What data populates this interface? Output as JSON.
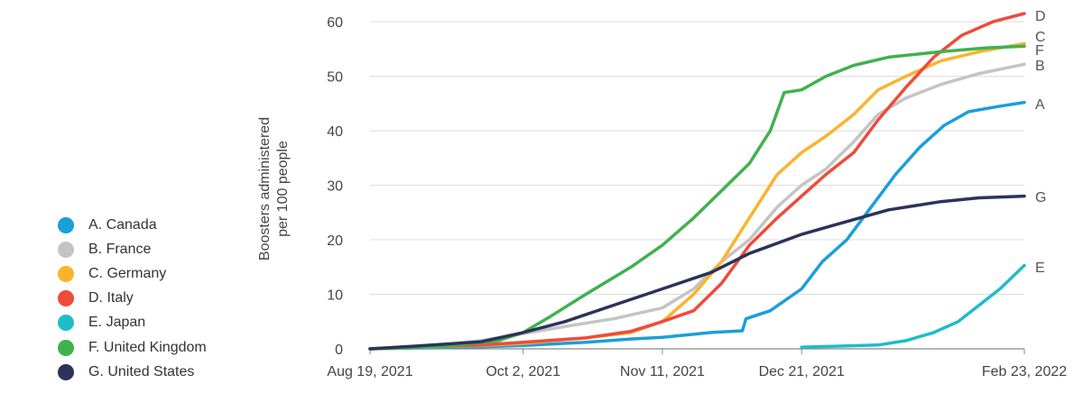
{
  "chart_data": {
    "type": "line",
    "ylabel": "Boosters administered\nper 100 people",
    "xlabel": "",
    "ylim": [
      0,
      62
    ],
    "yticks": [
      0,
      10,
      20,
      30,
      40,
      50,
      60
    ],
    "xlim": [
      "2021-08-19",
      "2022-02-23"
    ],
    "xticks": [
      "2021-08-19",
      "2021-10-02",
      "2021-11-11",
      "2021-12-21",
      "2022-02-23"
    ],
    "xtick_labels": [
      "Aug 19, 2021",
      "Oct 2, 2021",
      "Nov 11, 2021",
      "Dec 21, 2021",
      "Feb 23, 2022"
    ],
    "grid": true,
    "legend_position": "left",
    "series": [
      {
        "name": "A. Canada",
        "end_label": "A",
        "color": "#1a9fd9",
        "points": [
          [
            "2021-08-19",
            0
          ],
          [
            "2021-09-15",
            0.3
          ],
          [
            "2021-10-02",
            0.6
          ],
          [
            "2021-10-20",
            1.2
          ],
          [
            "2021-11-02",
            1.8
          ],
          [
            "2021-11-11",
            2.1
          ],
          [
            "2021-11-25",
            3
          ],
          [
            "2021-12-04",
            3.3
          ],
          [
            "2021-12-05",
            5.5
          ],
          [
            "2021-12-12",
            7
          ],
          [
            "2021-12-21",
            11
          ],
          [
            "2021-12-27",
            16
          ],
          [
            "2022-01-03",
            20
          ],
          [
            "2022-01-10",
            26
          ],
          [
            "2022-01-17",
            32
          ],
          [
            "2022-01-24",
            37
          ],
          [
            "2022-01-31",
            41
          ],
          [
            "2022-02-07",
            43.5
          ],
          [
            "2022-02-16",
            44.5
          ],
          [
            "2022-02-23",
            45.2
          ]
        ]
      },
      {
        "name": "B. France",
        "end_label": "B",
        "color": "#c4c4c4",
        "points": [
          [
            "2021-08-19",
            0
          ],
          [
            "2021-09-10",
            0.8
          ],
          [
            "2021-09-20",
            1.5
          ],
          [
            "2021-10-02",
            2.8
          ],
          [
            "2021-10-15",
            4.2
          ],
          [
            "2021-10-28",
            5.5
          ],
          [
            "2021-11-11",
            7.5
          ],
          [
            "2021-11-20",
            11
          ],
          [
            "2021-11-28",
            16
          ],
          [
            "2021-12-06",
            20
          ],
          [
            "2021-12-14",
            26
          ],
          [
            "2021-12-21",
            30
          ],
          [
            "2021-12-28",
            33
          ],
          [
            "2022-01-05",
            38
          ],
          [
            "2022-01-12",
            43
          ],
          [
            "2022-01-20",
            46
          ],
          [
            "2022-01-30",
            48.5
          ],
          [
            "2022-02-10",
            50.5
          ],
          [
            "2022-02-23",
            52.2
          ]
        ]
      },
      {
        "name": "C. Germany",
        "end_label": "C",
        "color": "#fbb32e",
        "points": [
          [
            "2021-08-19",
            0
          ],
          [
            "2021-09-20",
            0.6
          ],
          [
            "2021-10-02",
            1
          ],
          [
            "2021-10-20",
            2
          ],
          [
            "2021-11-02",
            3
          ],
          [
            "2021-11-11",
            5
          ],
          [
            "2021-11-20",
            10
          ],
          [
            "2021-11-28",
            16
          ],
          [
            "2021-12-06",
            24
          ],
          [
            "2021-12-14",
            32
          ],
          [
            "2021-12-21",
            36
          ],
          [
            "2021-12-28",
            39
          ],
          [
            "2022-01-05",
            43
          ],
          [
            "2022-01-12",
            47.5
          ],
          [
            "2022-01-20",
            50
          ],
          [
            "2022-01-30",
            52.8
          ],
          [
            "2022-02-10",
            54.5
          ],
          [
            "2022-02-23",
            56
          ]
        ]
      },
      {
        "name": "D. Italy",
        "end_label": "D",
        "color": "#ef4b3c",
        "points": [
          [
            "2021-08-19",
            0
          ],
          [
            "2021-09-20",
            0.7
          ],
          [
            "2021-10-02",
            1.2
          ],
          [
            "2021-10-20",
            2
          ],
          [
            "2021-11-02",
            3.2
          ],
          [
            "2021-11-11",
            5
          ],
          [
            "2021-11-20",
            7
          ],
          [
            "2021-11-28",
            12
          ],
          [
            "2021-12-06",
            19
          ],
          [
            "2021-12-14",
            24
          ],
          [
            "2021-12-21",
            28
          ],
          [
            "2021-12-28",
            32
          ],
          [
            "2022-01-05",
            36
          ],
          [
            "2022-01-12",
            42
          ],
          [
            "2022-01-20",
            48
          ],
          [
            "2022-01-28",
            53.5
          ],
          [
            "2022-02-05",
            57.5
          ],
          [
            "2022-02-14",
            60
          ],
          [
            "2022-02-23",
            61.5
          ]
        ]
      },
      {
        "name": "E. Japan",
        "end_label": "E",
        "color": "#1fbcc8",
        "points": [
          [
            "2021-12-21",
            0.3
          ],
          [
            "2022-01-01",
            0.5
          ],
          [
            "2022-01-12",
            0.7
          ],
          [
            "2022-01-20",
            1.5
          ],
          [
            "2022-01-28",
            3
          ],
          [
            "2022-02-04",
            5
          ],
          [
            "2022-02-10",
            8
          ],
          [
            "2022-02-16",
            11
          ],
          [
            "2022-02-23",
            15.3
          ]
        ]
      },
      {
        "name": "F. United Kingdom",
        "end_label": "F",
        "color": "#3fb24e",
        "points": [
          [
            "2021-08-19",
            0
          ],
          [
            "2021-09-10",
            0.5
          ],
          [
            "2021-09-25",
            1.5
          ],
          [
            "2021-10-02",
            3
          ],
          [
            "2021-10-10",
            6
          ],
          [
            "2021-10-20",
            10
          ],
          [
            "2021-11-02",
            15
          ],
          [
            "2021-11-11",
            19
          ],
          [
            "2021-11-20",
            24
          ],
          [
            "2021-11-28",
            29
          ],
          [
            "2021-12-06",
            34
          ],
          [
            "2021-12-12",
            40
          ],
          [
            "2021-12-16",
            47
          ],
          [
            "2021-12-21",
            47.5
          ],
          [
            "2021-12-28",
            50
          ],
          [
            "2022-01-05",
            52
          ],
          [
            "2022-01-15",
            53.5
          ],
          [
            "2022-01-30",
            54.5
          ],
          [
            "2022-02-12",
            55.2
          ],
          [
            "2022-02-23",
            55.5
          ]
        ]
      },
      {
        "name": "G. United States",
        "end_label": "G",
        "color": "#2c3359",
        "points": [
          [
            "2021-08-19",
            0
          ],
          [
            "2021-09-01",
            0.5
          ],
          [
            "2021-09-20",
            1.3
          ],
          [
            "2021-10-02",
            3
          ],
          [
            "2021-10-14",
            5
          ],
          [
            "2021-10-28",
            8
          ],
          [
            "2021-11-11",
            11
          ],
          [
            "2021-11-25",
            14
          ],
          [
            "2021-12-06",
            17.5
          ],
          [
            "2021-12-21",
            21
          ],
          [
            "2022-01-01",
            23
          ],
          [
            "2022-01-15",
            25.5
          ],
          [
            "2022-01-30",
            27
          ],
          [
            "2022-02-10",
            27.7
          ],
          [
            "2022-02-23",
            28
          ]
        ]
      }
    ]
  }
}
